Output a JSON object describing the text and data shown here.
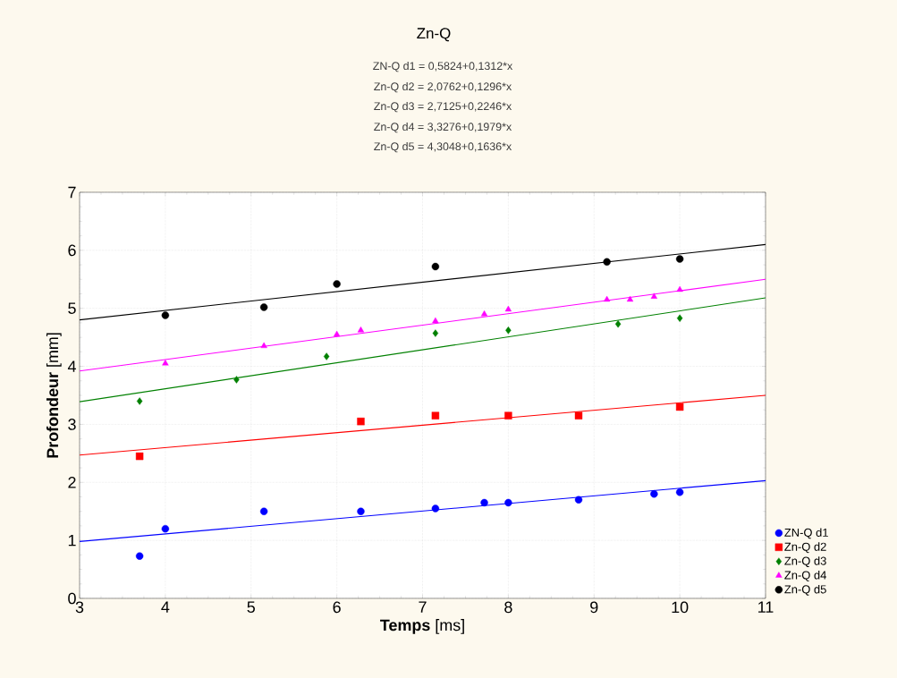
{
  "chart_data": {
    "type": "scatter",
    "title": "Zn-Q",
    "annotations": [
      "ZN-Q d1 = 0,5824+0,1312*x",
      "Zn-Q d2 = 2,0762+0,1296*x",
      "Zn-Q d3 = 2,7125+0,2246*x",
      "Zn-Q d4 = 3,3276+0,1979*x",
      "Zn-Q d5 = 4,3048+0,1636*x"
    ],
    "xlabel": "**Temps** [ms]",
    "ylabel": "**Profondeur** [mm]",
    "xlim": [
      3,
      11
    ],
    "ylim": [
      0,
      7
    ],
    "xticks": [
      3,
      4,
      5,
      6,
      7,
      8,
      9,
      10,
      11
    ],
    "yticks": [
      0,
      1,
      2,
      3,
      4,
      5,
      6,
      7
    ],
    "grid": true,
    "legend": "bottom right",
    "series": [
      {
        "name": "ZN-Q d1",
        "color": "#0000ff",
        "marker": "circle",
        "x": [
          3.7,
          4.0,
          5.15,
          6.28,
          7.15,
          7.72,
          8.0,
          8.82,
          9.7,
          10.0
        ],
        "values": [
          0.73,
          1.2,
          1.5,
          1.5,
          1.55,
          1.65,
          1.65,
          1.7,
          1.8,
          1.83
        ]
      },
      {
        "name": "Zn-Q d2",
        "color": "#ff0000",
        "marker": "square",
        "x": [
          3.7,
          6.28,
          7.15,
          8.0,
          8.82,
          10.0
        ],
        "values": [
          2.45,
          3.05,
          3.15,
          3.15,
          3.15,
          3.3
        ]
      },
      {
        "name": "Zn-Q d3",
        "color": "#008000",
        "marker": "diamond",
        "x": [
          3.7,
          4.83,
          5.88,
          7.15,
          8.0,
          9.28,
          10.0
        ],
        "values": [
          3.4,
          3.77,
          4.17,
          4.57,
          4.62,
          4.73,
          4.83
        ]
      },
      {
        "name": "Zn-Q d4",
        "color": "#ff00ff",
        "marker": "triangle",
        "x": [
          4.0,
          5.15,
          6.0,
          6.28,
          7.15,
          7.72,
          8.0,
          9.15,
          9.42,
          9.7,
          10.0
        ],
        "values": [
          4.05,
          4.35,
          4.55,
          4.62,
          4.78,
          4.9,
          4.98,
          5.15,
          5.15,
          5.2,
          5.32
        ]
      },
      {
        "name": "Zn-Q d5",
        "color": "#000000",
        "marker": "circle",
        "x": [
          4.0,
          5.15,
          6.0,
          7.15,
          9.15,
          10.0
        ],
        "values": [
          4.88,
          5.02,
          5.42,
          5.72,
          5.8,
          5.85
        ]
      },
      {
        "type": "line",
        "color": "#0000ff",
        "marker": "none",
        "x": [
          3,
          11
        ],
        "values": [
          0.98,
          2.03
        ]
      },
      {
        "type": "line",
        "color": "#ff0000",
        "marker": "none",
        "x": [
          3,
          11
        ],
        "values": [
          2.47,
          3.5
        ]
      },
      {
        "type": "line",
        "color": "#008000",
        "marker": "none",
        "x": [
          3,
          11
        ],
        "values": [
          3.39,
          5.18
        ]
      },
      {
        "type": "line",
        "color": "#ff00ff",
        "marker": "none",
        "x": [
          3,
          11
        ],
        "values": [
          3.92,
          5.5
        ]
      },
      {
        "type": "line",
        "color": "#000000",
        "marker": "none",
        "x": [
          3,
          11
        ],
        "values": [
          4.8,
          6.1
        ]
      }
    ]
  }
}
